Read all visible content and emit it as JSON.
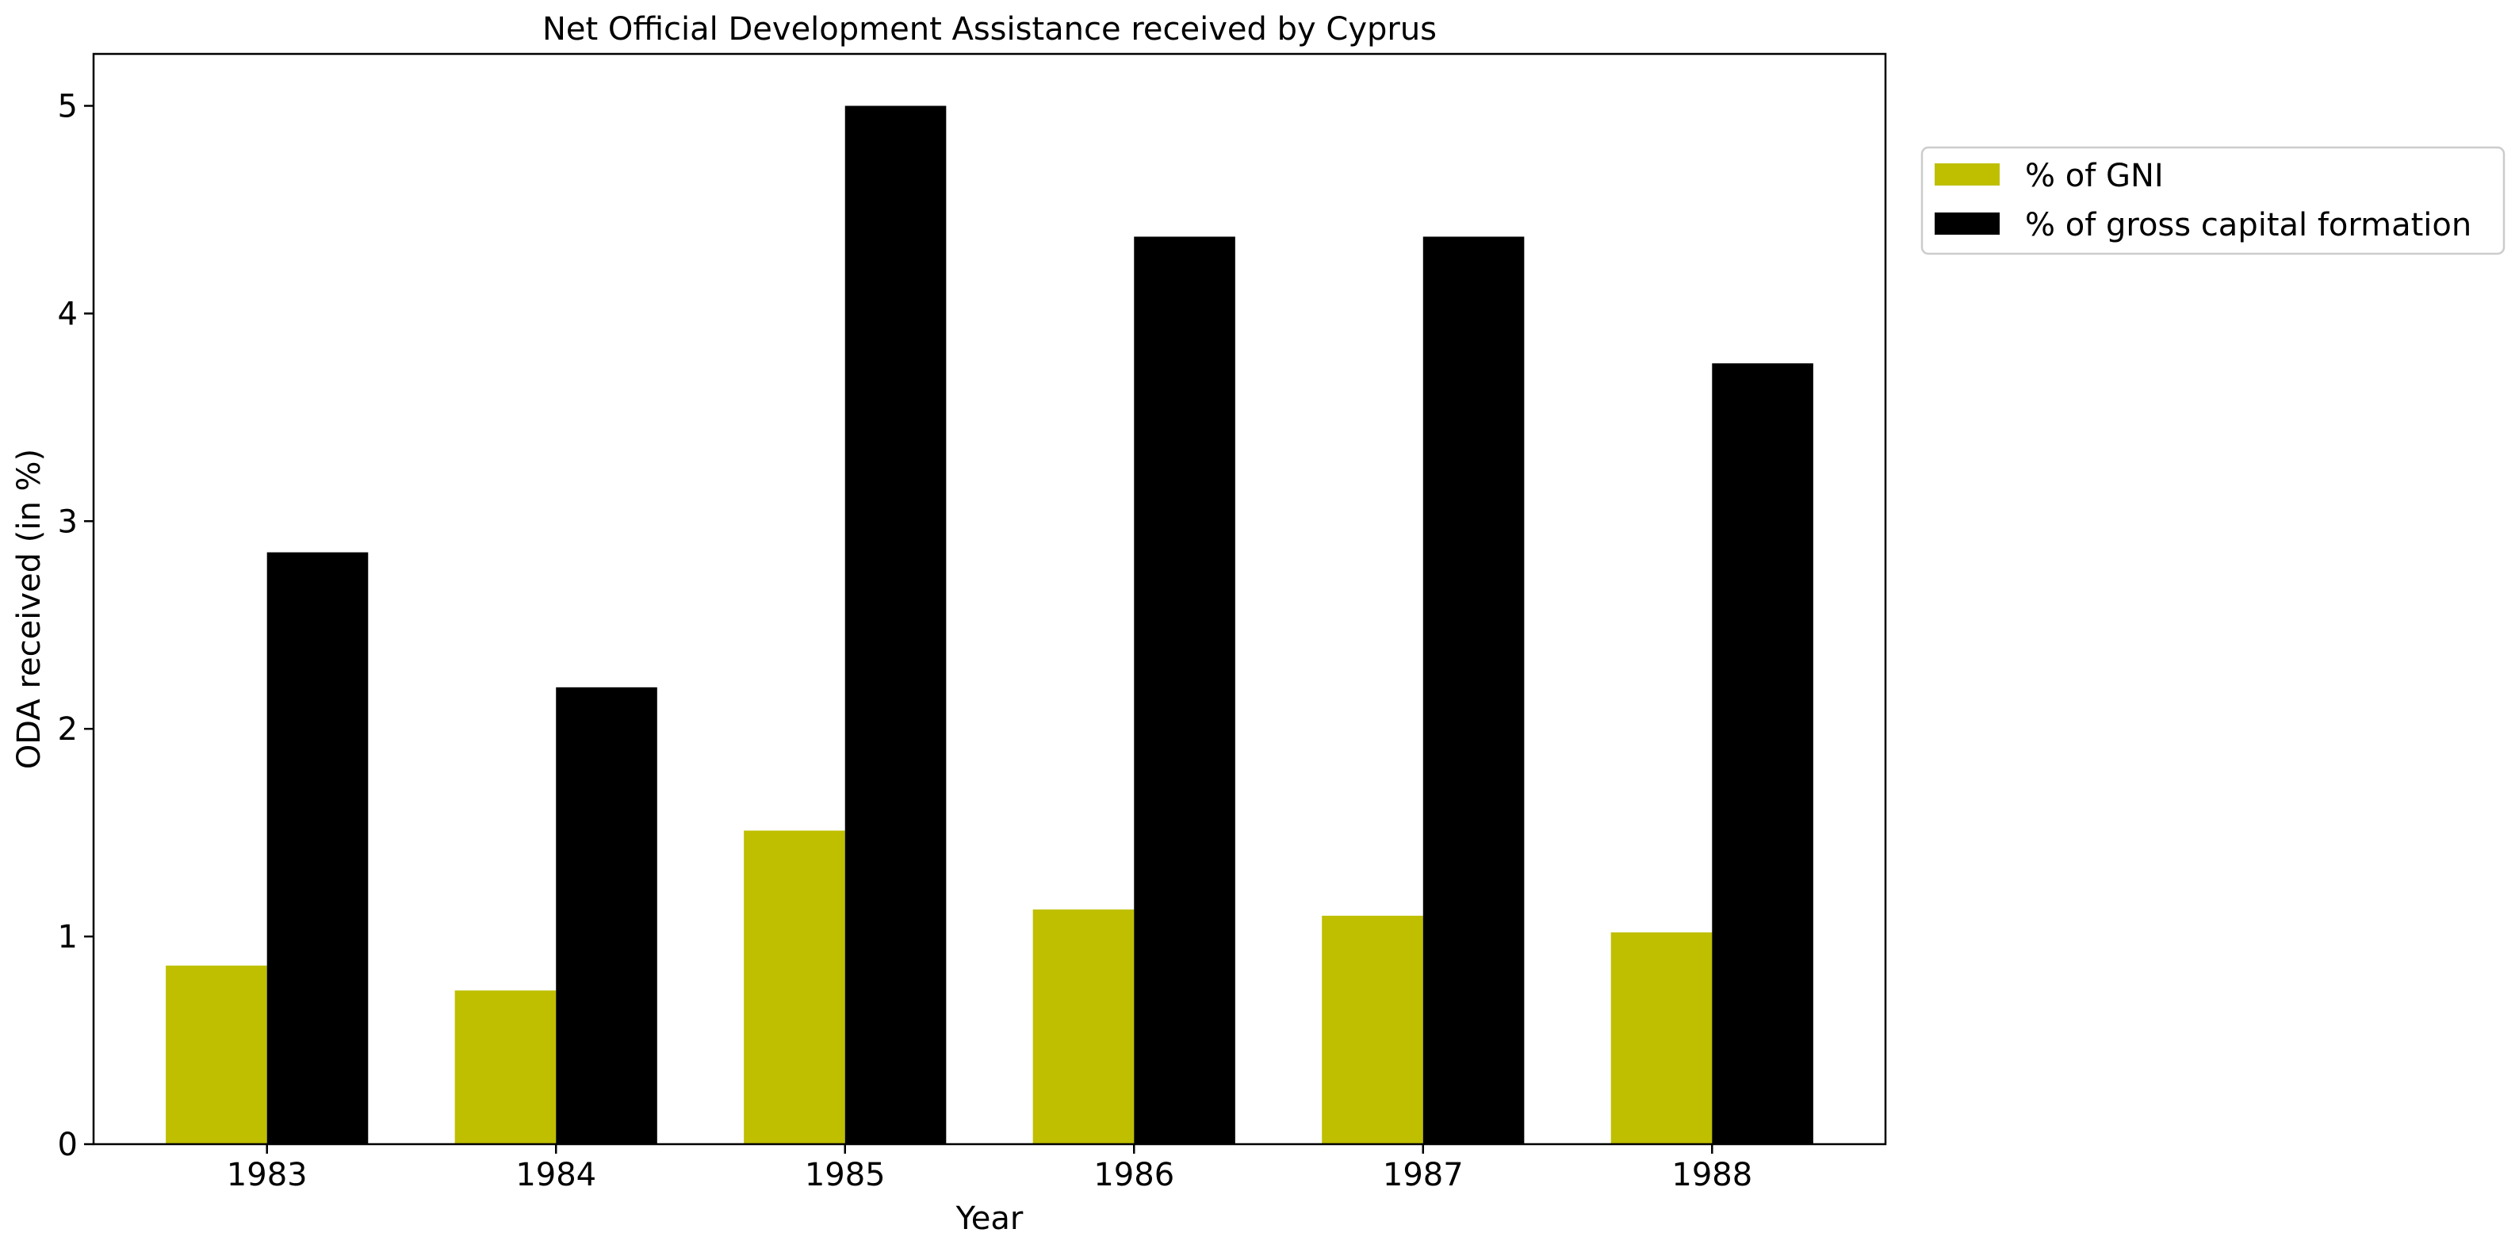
{
  "chart_data": {
    "type": "bar",
    "title": "Net Official Development Assistance received by Cyprus",
    "xlabel": "Year",
    "ylabel": "ODA received (in %)",
    "categories": [
      "1983",
      "1984",
      "1985",
      "1986",
      "1987",
      "1988"
    ],
    "series": [
      {
        "name": "% of GNI",
        "color": "#bfbf00",
        "values": [
          0.86,
          0.74,
          1.51,
          1.13,
          1.1,
          1.02
        ]
      },
      {
        "name": "% of gross capital formation",
        "color": "#000000",
        "values": [
          2.85,
          2.2,
          5.0,
          4.37,
          4.37,
          3.76
        ]
      }
    ],
    "ylim": [
      0,
      5.25
    ],
    "yticks": [
      "0",
      "1",
      "2",
      "3",
      "4",
      "5"
    ],
    "grid": false,
    "legend_position": "outside-top-right"
  }
}
